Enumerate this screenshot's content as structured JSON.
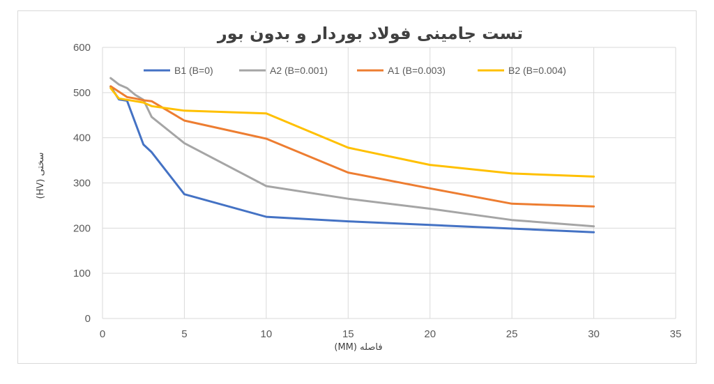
{
  "chart_data": {
    "type": "line",
    "title": "تست جامینی فولاد بوردار و بدون بور",
    "xlabel": "فاصله (MM)",
    "ylabel": "سختی (HV)",
    "xlim": [
      0,
      35
    ],
    "ylim": [
      0,
      600
    ],
    "xticks": [
      0,
      5,
      10,
      15,
      20,
      25,
      30,
      35
    ],
    "yticks": [
      0,
      100,
      200,
      300,
      400,
      500,
      600
    ],
    "grid": true,
    "legend_position": "top",
    "series": [
      {
        "name": "B1 (B=0)",
        "color": "#4472c4",
        "points": [
          [
            0.5,
            513
          ],
          [
            1,
            485
          ],
          [
            1.5,
            482
          ],
          [
            2.5,
            385
          ],
          [
            3,
            368
          ],
          [
            5,
            275
          ],
          [
            10,
            225
          ],
          [
            15,
            215
          ],
          [
            20,
            207
          ],
          [
            25,
            199
          ],
          [
            30,
            191
          ]
        ]
      },
      {
        "name": "A2 (B=0.001)",
        "color": "#a5a5a5",
        "points": [
          [
            0.5,
            532
          ],
          [
            1,
            518
          ],
          [
            1.5,
            510
          ],
          [
            2,
            495
          ],
          [
            2.5,
            484
          ],
          [
            3,
            446
          ],
          [
            5,
            388
          ],
          [
            10,
            293
          ],
          [
            15,
            265
          ],
          [
            20,
            243
          ],
          [
            25,
            218
          ],
          [
            30,
            204
          ]
        ]
      },
      {
        "name": "A1 (B=0.003)",
        "color": "#ed7d31",
        "points": [
          [
            0.5,
            514
          ],
          [
            1.5,
            490
          ],
          [
            2,
            487
          ],
          [
            2.5,
            483
          ],
          [
            3,
            481
          ],
          [
            5,
            438
          ],
          [
            10,
            398
          ],
          [
            15,
            323
          ],
          [
            20,
            288
          ],
          [
            25,
            254
          ],
          [
            30,
            248
          ]
        ]
      },
      {
        "name": "B2 (B=0.004)",
        "color": "#ffc000",
        "points": [
          [
            0.5,
            510
          ],
          [
            1,
            487
          ],
          [
            1.5,
            484
          ],
          [
            2.5,
            478
          ],
          [
            3,
            470
          ],
          [
            5,
            460
          ],
          [
            10,
            454
          ],
          [
            15,
            378
          ],
          [
            20,
            340
          ],
          [
            25,
            321
          ],
          [
            30,
            314
          ]
        ]
      }
    ]
  }
}
